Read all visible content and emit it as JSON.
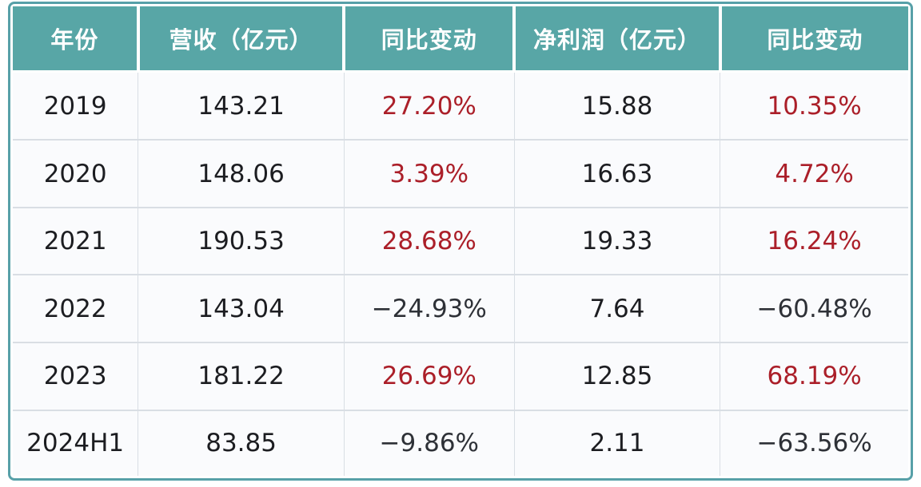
{
  "colors": {
    "header_bg": "#58a6a6",
    "header_text": "#ffffff",
    "row_bg": "#fafbfd",
    "grid_line": "#d9dee4",
    "outer_border": "#57a0a8",
    "text": "#1c1d21",
    "up_change": "#ab1f29",
    "down_change": "#2e3137"
  },
  "table_meta": {
    "column_keys": [
      "year",
      "revenue",
      "revenue-change",
      "net-profit",
      "profit-change"
    ],
    "change_column_indexes": [
      2,
      4
    ]
  },
  "chart_data": {
    "type": "table",
    "title": "",
    "columns": [
      "年份",
      "营收（亿元）",
      "同比变动",
      "净利润（亿元）",
      "同比变动"
    ],
    "rows": [
      [
        "2019",
        "143.21",
        "27.20%",
        "15.88",
        "10.35%"
      ],
      [
        "2020",
        "148.06",
        "3.39%",
        "16.63",
        "4.72%"
      ],
      [
        "2021",
        "190.53",
        "28.68%",
        "19.33",
        "16.24%"
      ],
      [
        "2022",
        "143.04",
        "−24.93%",
        "7.64",
        "−60.48%"
      ],
      [
        "2023",
        "181.22",
        "26.69%",
        "12.85",
        "68.19%"
      ],
      [
        "2024H1",
        "83.85",
        "−9.86%",
        "2.11",
        "−63.56%"
      ]
    ],
    "notes": {
      "positive_changes_rendered_red": true,
      "negative_changes_rendered_dark": true
    }
  }
}
